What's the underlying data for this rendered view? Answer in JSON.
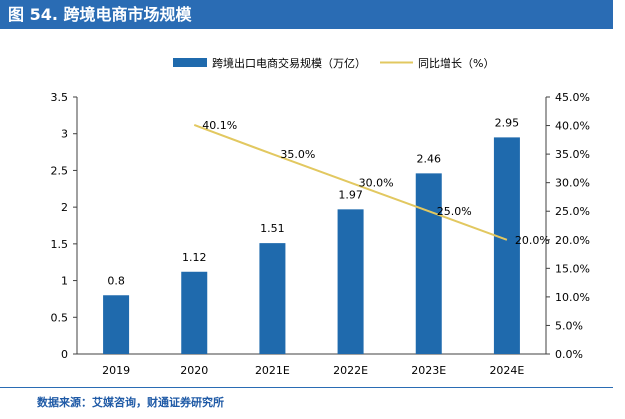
{
  "header": {
    "title": "图 54. 跨境电商市场规模"
  },
  "source": {
    "text": "数据来源：艾媒咨询，财通证券研究所"
  },
  "colors": {
    "bar": "#1f6aad",
    "line": "#e2c860",
    "header_bg": "#2a6cb4",
    "axis": "#404040"
  },
  "chart_data": {
    "type": "bar",
    "categories": [
      "2019",
      "2020",
      "2021E",
      "2022E",
      "2023E",
      "2024E"
    ],
    "series": [
      {
        "name": "跨境出口电商交易规模（万亿）",
        "type": "bar",
        "axis": "left",
        "values": [
          0.8,
          1.12,
          1.51,
          1.97,
          2.46,
          2.95
        ],
        "labels": [
          "0.8",
          "1.12",
          "1.51",
          "1.97",
          "2.46",
          "2.95"
        ]
      },
      {
        "name": "同比增长（%）",
        "type": "line",
        "axis": "right",
        "values": [
          null,
          40.1,
          35.0,
          30.0,
          25.0,
          20.0
        ],
        "labels": [
          null,
          "40.1%",
          "35.0%",
          "30.0%",
          "25.0%",
          "20.0%"
        ]
      }
    ],
    "y_left": {
      "ylim": [
        0,
        3.5
      ],
      "ticks": [
        "0",
        "0.5",
        "1",
        "1.5",
        "2",
        "2.5",
        "3",
        "3.5"
      ]
    },
    "y_right": {
      "ylim": [
        0,
        45
      ],
      "ticks": [
        "0.0%",
        "5.0%",
        "10.0%",
        "15.0%",
        "20.0%",
        "25.0%",
        "30.0%",
        "35.0%",
        "40.0%",
        "45.0%"
      ]
    },
    "legend": "top-center",
    "grid": false
  }
}
